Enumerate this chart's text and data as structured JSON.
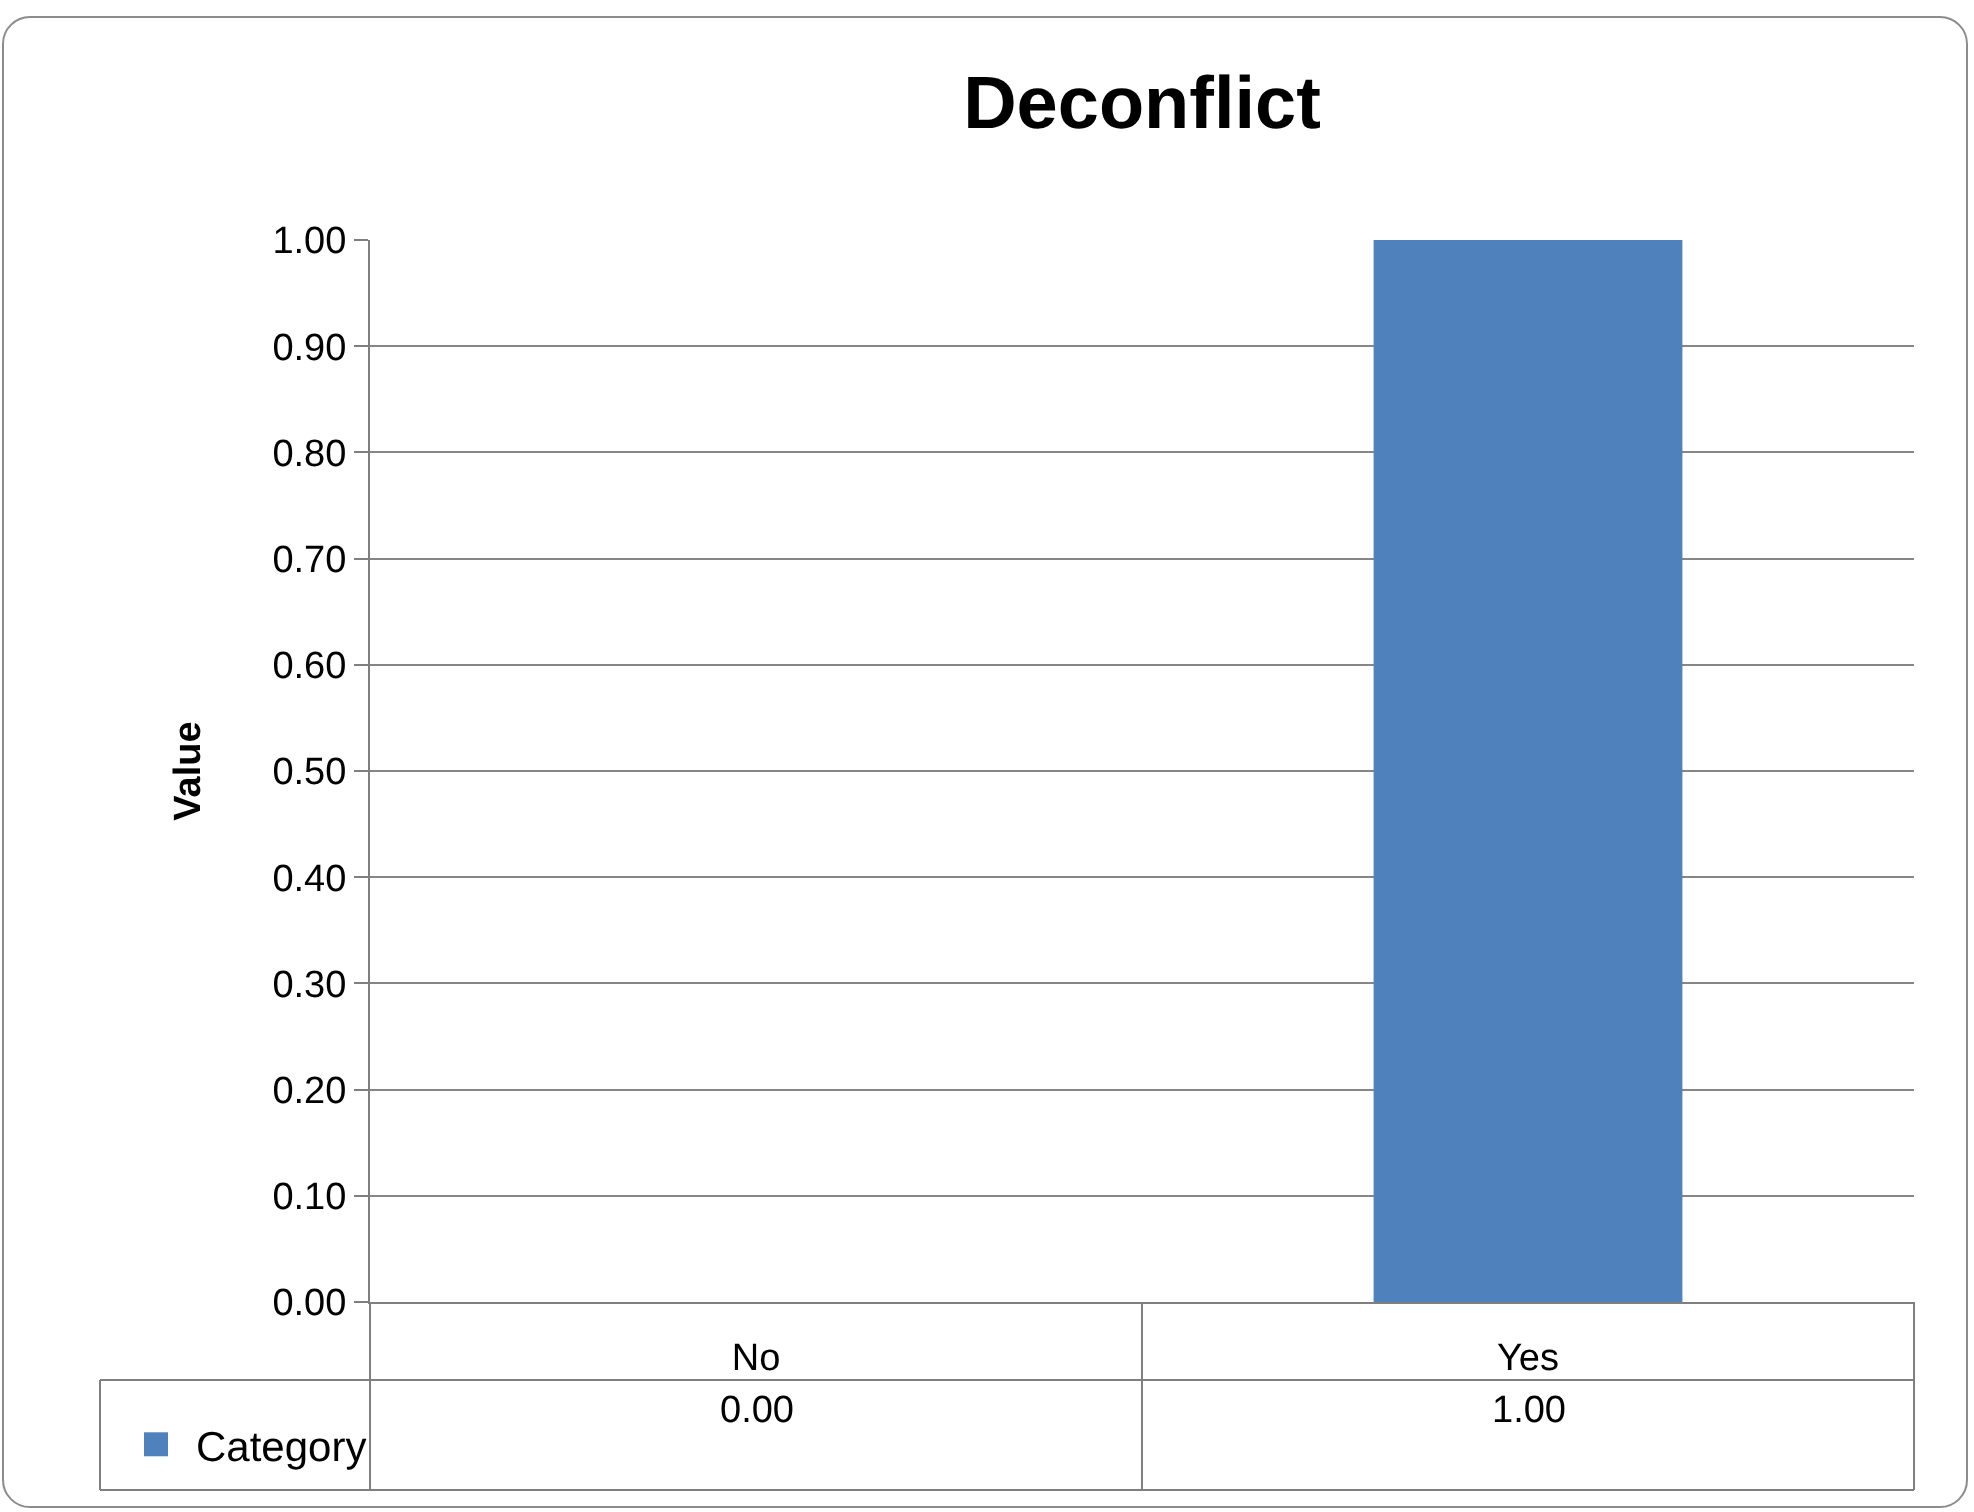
{
  "chart_data": {
    "type": "bar",
    "title": "Deconflict",
    "ylabel": "Value",
    "categories": [
      "No",
      "Yes"
    ],
    "series": [
      {
        "name": "Category",
        "color": "#4f81bd",
        "values": [
          0,
          1
        ],
        "value_labels": [
          "0.00",
          "1.00"
        ]
      }
    ],
    "ylim": [
      0,
      1
    ],
    "yticks": [
      {
        "value": 0,
        "label": "0.00"
      },
      {
        "value": 0.1,
        "label": "0.10"
      },
      {
        "value": 0.2,
        "label": "0.20"
      },
      {
        "value": 0.3,
        "label": "0.30"
      },
      {
        "value": 0.4,
        "label": "0.40"
      },
      {
        "value": 0.5,
        "label": "0.50"
      },
      {
        "value": 0.6,
        "label": "0.60"
      },
      {
        "value": 0.7,
        "label": "0.70"
      },
      {
        "value": 0.8,
        "label": "0.80"
      },
      {
        "value": 0.9,
        "label": "0.90"
      },
      {
        "value": 1,
        "label": "1.00"
      }
    ],
    "grid": "y",
    "legend": "bottom left"
  }
}
